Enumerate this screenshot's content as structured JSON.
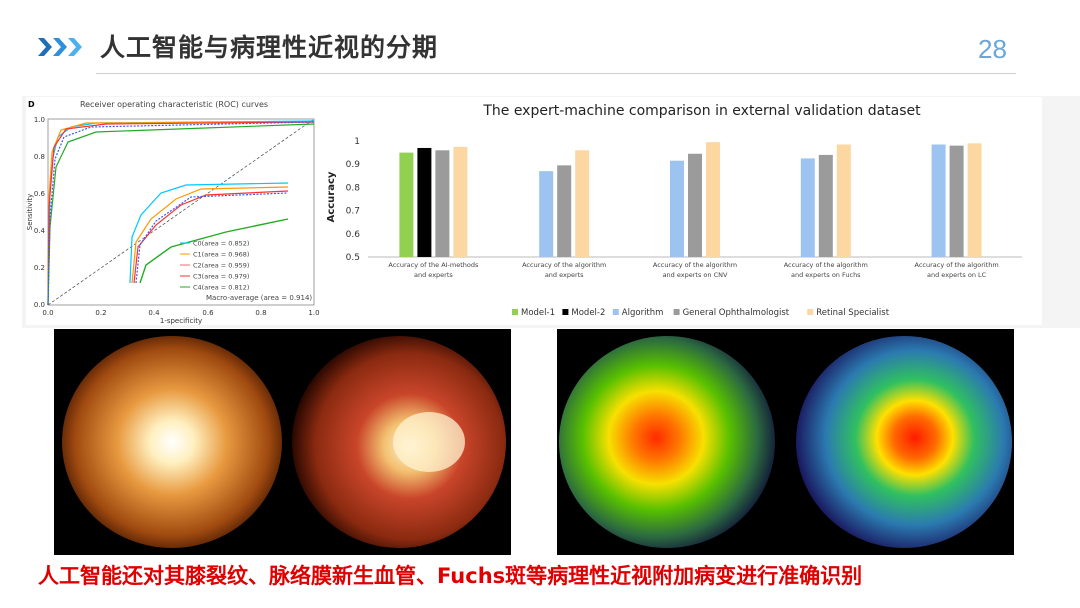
{
  "slide": {
    "title": "人工智能与病理性近视的分期",
    "page_number": "28",
    "caption": "人工智能还对其膝裂纹、脉络膜新生血管、Fuchs斑等病理性近视附加病变进行准确识别",
    "accent_color": "#2f8fdc",
    "caption_color": "#e00000",
    "icons": [
      "chevron-right-icon"
    ]
  },
  "roc_chart": {
    "panel_letter": "D",
    "title": "Receiver operating characteristic (ROC) curves",
    "xlabel": "1-specificity",
    "ylabel": "Sensitivity",
    "x_ticks": [
      "0.0",
      "0.2",
      "0.4",
      "0.6",
      "0.8",
      "1.0"
    ],
    "y_ticks": [
      "0.0",
      "0.2",
      "0.4",
      "0.6",
      "0.8",
      "1.0"
    ],
    "legend": [
      "C0(area = 0.852)",
      "C1(area = 0.968)",
      "C2(area = 0.959)",
      "C3(area = 0.979)",
      "C4(area = 0.812)",
      "Macro-average (area = 0.914)"
    ]
  },
  "chart_data": {
    "type": "bar",
    "title": "The expert-machine comparison in external validation dataset",
    "ylabel": "Accuracy",
    "ylim": [
      0.5,
      1.0
    ],
    "y_ticks": [
      "0.5",
      "0.6",
      "0.7",
      "0.8",
      "0.9",
      "1"
    ],
    "categories": [
      [
        "Accuracy of the AI-methods",
        "and experts"
      ],
      [
        "Accuracy of the algorithm",
        "and experts"
      ],
      [
        "Accuracy of the algorithm",
        "and experts on CNV"
      ],
      [
        "Accuracy of the algorithm",
        "and experts on Fuchs"
      ],
      [
        "Accuracy of the algorithm",
        "and experts on LC"
      ]
    ],
    "series": [
      {
        "name": "Model-1",
        "color": "#92d050",
        "values": [
          0.95,
          null,
          null,
          null,
          null
        ]
      },
      {
        "name": "Model-2",
        "color": "#000000",
        "values": [
          0.97,
          null,
          null,
          null,
          null
        ]
      },
      {
        "name": "Algorithm",
        "color": "#9dc3f0",
        "values": [
          null,
          0.87,
          0.915,
          0.925,
          0.985
        ]
      },
      {
        "name": "General Ophthalmologist",
        "color": "#9b9b9b",
        "values": [
          0.96,
          0.895,
          0.945,
          0.94,
          0.98
        ]
      },
      {
        "name": "Retinal Specialist",
        "color": "#fdd7a1",
        "values": [
          0.975,
          0.96,
          0.995,
          0.985,
          0.99
        ]
      }
    ],
    "legend_position": "bottom"
  }
}
